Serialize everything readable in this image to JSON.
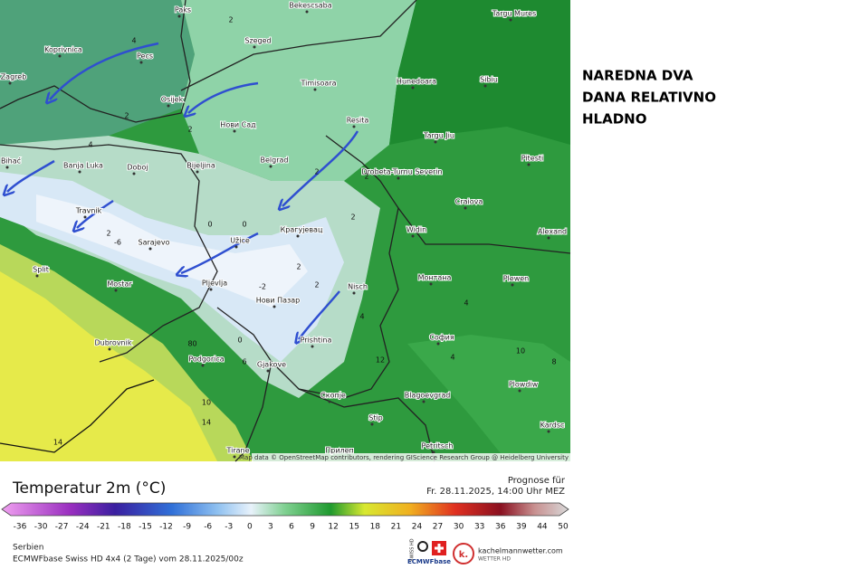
{
  "annotation": {
    "lines": [
      "NAREDNA DVA",
      "DANA RELATIVNO",
      "HLADNO"
    ]
  },
  "map": {
    "cities": [
      "Paks",
      "Bekescsaba",
      "Targu Mures",
      "Koprivnica",
      "Pecs",
      "Szeged",
      "Zagreb",
      "Osijek",
      "Timisoara",
      "Hunedoara",
      "Sibiu",
      "Нови Сад",
      "Resita",
      "Targu Jiu",
      "Bihać",
      "Banja Luka",
      "Doboj",
      "Bijeljina",
      "Belgrad",
      "Drobeta-Turnu Severin",
      "Pitesti",
      "Craiova",
      "Travnik",
      "Sarajevo",
      "Užice",
      "Крагујевац",
      "Widin",
      "Alexand",
      "Split",
      "Mostar",
      "Pljevlja",
      "Нови Пазар",
      "Nisch",
      "Монтана",
      "Plewen",
      "Dubrovnik",
      "Podgorica",
      "Prishtina",
      "София",
      "Gjakove",
      "Plowdiw",
      "Скопје",
      "Blagoevgrad",
      "Stip",
      "Kardsc",
      "Tirane",
      "Прилеп",
      "Petritsch"
    ],
    "contour_labels": [
      4,
      2,
      2,
      4,
      2,
      2,
      0,
      2,
      -6,
      0,
      -2,
      2,
      0,
      2,
      4,
      0,
      2,
      4,
      8,
      10,
      12,
      14,
      14,
      10,
      8,
      6,
      4,
      2
    ],
    "attribution": "Map data © OpenStreetMap contributors, rendering GIScience Research Group @ Heidelberg University"
  },
  "legend": {
    "title": "Temperatur 2m (°C)",
    "forecast_label": "Prognose für",
    "forecast_time": "Fr. 28.11.2025, 14:00 Uhr MEZ",
    "ticks": [
      -36,
      -30,
      -27,
      -24,
      -21,
      -18,
      -15,
      -12,
      -9,
      -6,
      -3,
      0,
      3,
      6,
      9,
      12,
      15,
      18,
      21,
      24,
      27,
      30,
      33,
      36,
      39,
      44,
      50
    ]
  },
  "footer": {
    "region": "Serbien",
    "model": "ECMWFbase Swiss HD 4x4 (2 Tage) vom 28.11.2025/00z",
    "swiss": "SWISS HD",
    "ecmwf": "ECMWFbase",
    "site": "kachelmannwetter.com",
    "site_sub": "WETTER HD",
    "logo": "k."
  }
}
